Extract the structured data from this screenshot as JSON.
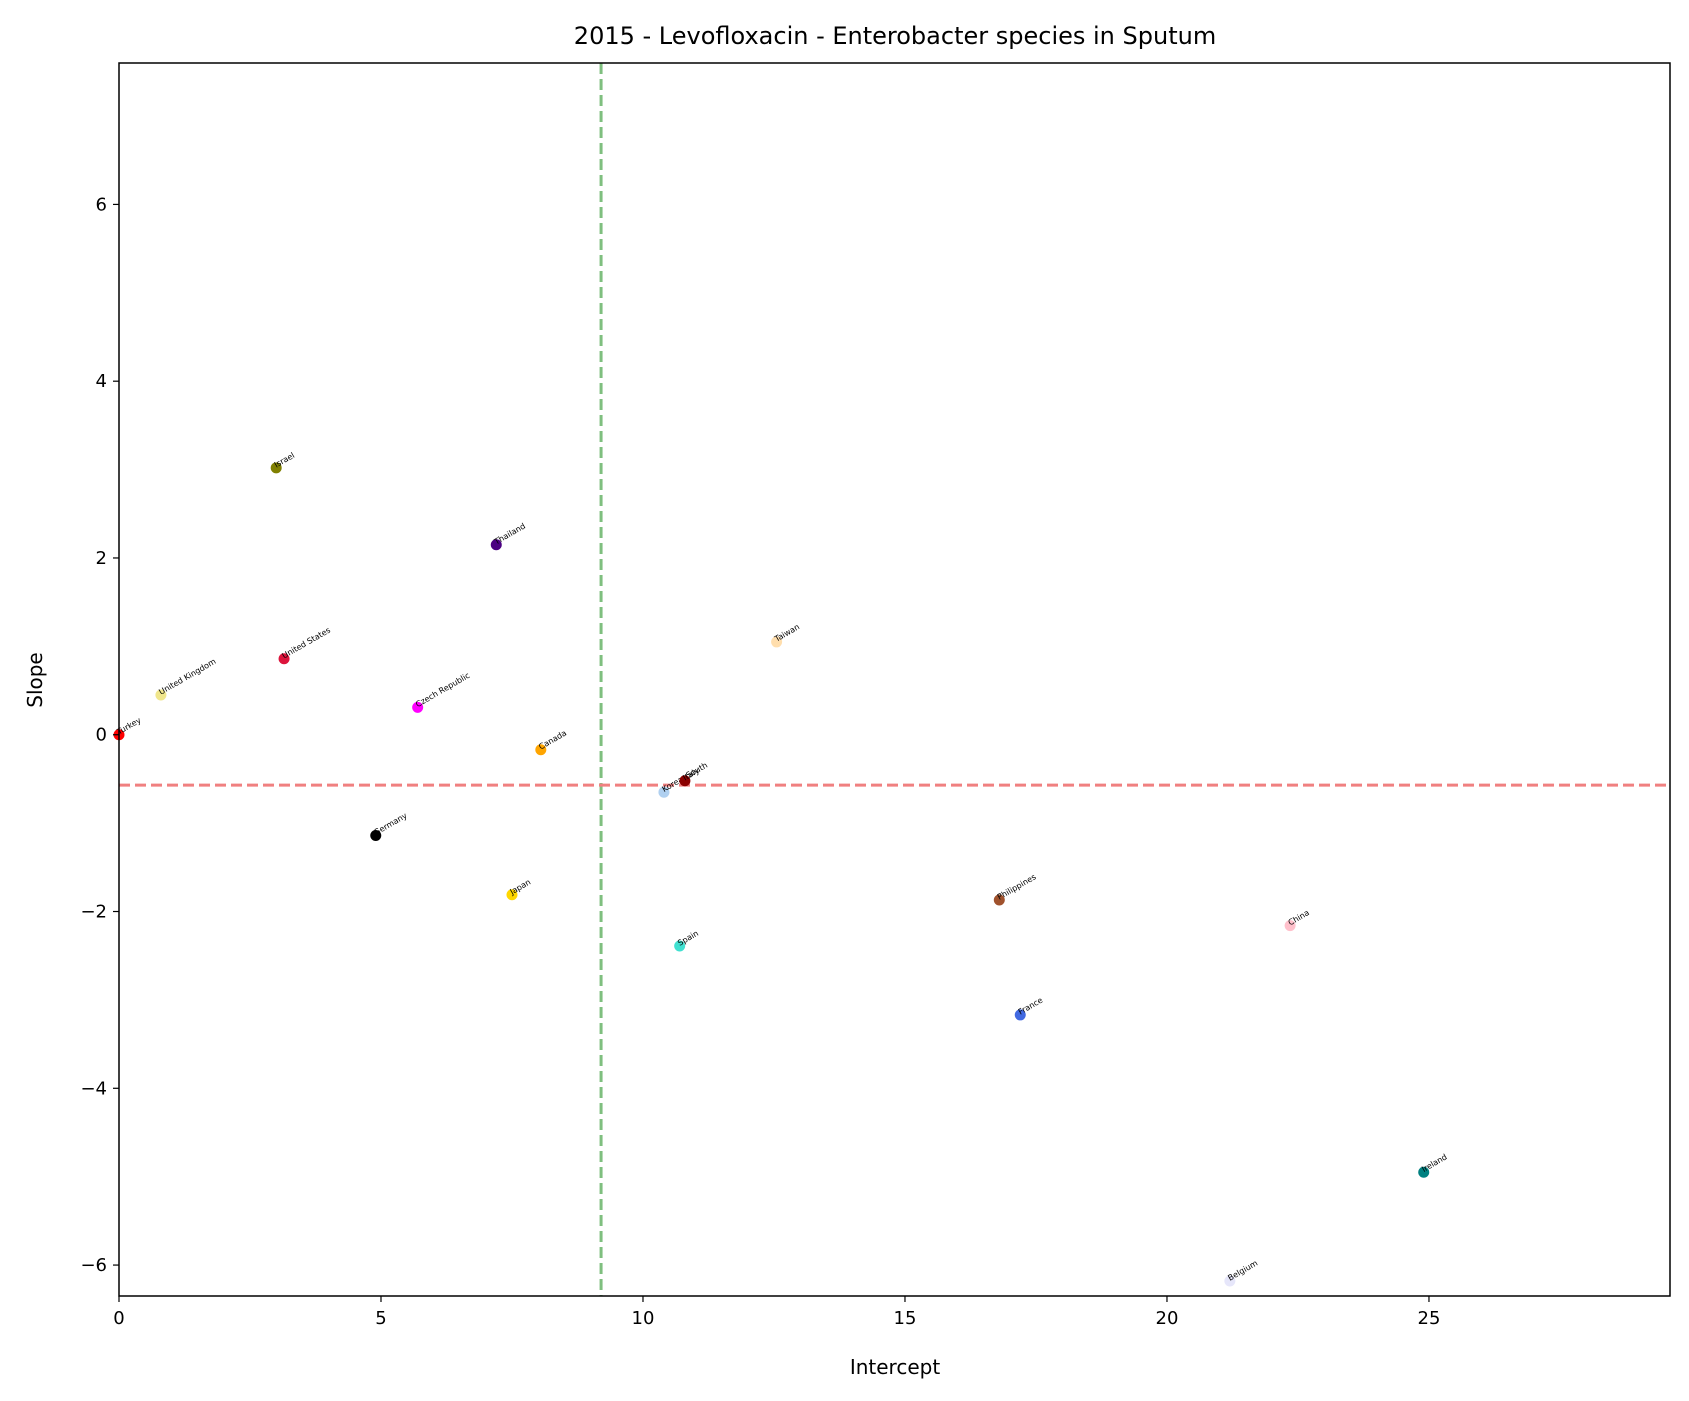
{
  "chart_data": {
    "type": "scatter",
    "title": "2015 - Levofloxacin - Enterobacter species in Sputum",
    "xlabel": "Intercept",
    "ylabel": "Slope",
    "xlim": [
      0,
      29.6
    ],
    "ylim": [
      -6.35,
      7.6
    ],
    "xticks": [
      0,
      5,
      10,
      15,
      20,
      25
    ],
    "yticks": [
      -6,
      -4,
      -2,
      0,
      2,
      4,
      6
    ],
    "xtick_labels": [
      "0",
      "5",
      "10",
      "15",
      "20",
      "25"
    ],
    "ytick_labels": [
      "−6",
      "−4",
      "−2",
      "0",
      "2",
      "4",
      "6"
    ],
    "grid": false,
    "reference_lines": {
      "vertical": {
        "x": 9.2,
        "color": "#7fbf7f",
        "style": "dashed"
      },
      "horizontal": {
        "y": -0.57,
        "color": "#f08080",
        "style": "dashed"
      }
    },
    "points": [
      {
        "label": "Turkey",
        "x": 0.0,
        "y": 0.0,
        "color": "#ff0000"
      },
      {
        "label": "United Kingdom",
        "x": 0.8,
        "y": 0.45,
        "color": "#f0e68c"
      },
      {
        "label": "Israel",
        "x": 3.0,
        "y": 3.02,
        "color": "#808000"
      },
      {
        "label": "United States",
        "x": 3.15,
        "y": 0.86,
        "color": "#dc143c"
      },
      {
        "label": "Germany",
        "x": 4.9,
        "y": -1.14,
        "color": "#000000"
      },
      {
        "label": "Czech Republic",
        "x": 5.7,
        "y": 0.31,
        "color": "#ff00ff"
      },
      {
        "label": "Thailand",
        "x": 7.2,
        "y": 2.15,
        "color": "#4b0082"
      },
      {
        "label": "Japan",
        "x": 7.5,
        "y": -1.81,
        "color": "#ffd700"
      },
      {
        "label": "Canada",
        "x": 8.05,
        "y": -0.17,
        "color": "#ffa500"
      },
      {
        "label": "Korea, South",
        "x": 10.4,
        "y": -0.65,
        "color": "#b0d0f0"
      },
      {
        "label": "Italy",
        "x": 10.8,
        "y": -0.52,
        "color": "#8b0000"
      },
      {
        "label": "Spain",
        "x": 10.7,
        "y": -2.39,
        "color": "#40e0d0"
      },
      {
        "label": "Taiwan",
        "x": 12.55,
        "y": 1.05,
        "color": "#ffdead"
      },
      {
        "label": "Philippines",
        "x": 16.8,
        "y": -1.87,
        "color": "#a0522d"
      },
      {
        "label": "France",
        "x": 17.2,
        "y": -3.17,
        "color": "#4169e1"
      },
      {
        "label": "Belgium",
        "x": 21.2,
        "y": -6.18,
        "color": "#e6e6fa"
      },
      {
        "label": "China",
        "x": 22.35,
        "y": -2.16,
        "color": "#ffc0cb"
      },
      {
        "label": "Ireland",
        "x": 24.9,
        "y": -4.95,
        "color": "#008080"
      }
    ]
  }
}
